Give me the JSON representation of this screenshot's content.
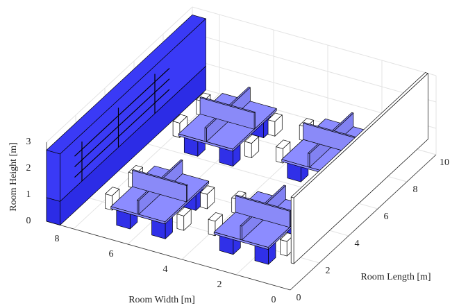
{
  "chart_data": {
    "type": "scene3d",
    "xlabel": "Room Length [m]",
    "ylabel": "Room Width [m]",
    "zlabel": "Room Height [m]",
    "xlim": [
      0,
      10
    ],
    "ylim": [
      0,
      9
    ],
    "zlim": [
      0,
      3
    ],
    "xticks": [
      0,
      2,
      4,
      6,
      8,
      10
    ],
    "yticks": [
      0,
      2,
      4,
      6,
      8
    ],
    "zticks": [
      0,
      1,
      2,
      3
    ],
    "grid": true
  }
}
